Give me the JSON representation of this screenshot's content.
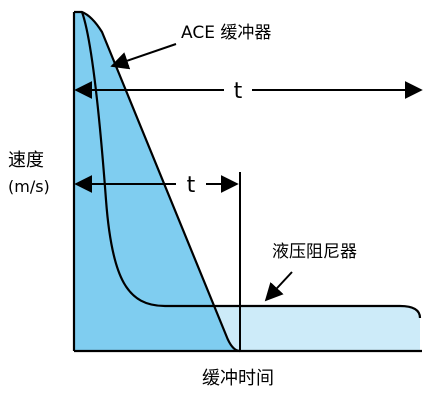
{
  "diagram": {
    "labels": {
      "ace": "ACE 缓冲器",
      "t_long": "t",
      "t_short": "t",
      "ylabel_line1": "速度",
      "ylabel_line2": "(m/s)",
      "hydraulic": "液压阻尼器",
      "xlabel": "缓冲时间"
    },
    "colors": {
      "ace_fill": "#7FCDF0",
      "hydraulic_fill": "#CDEBF9",
      "stroke": "#000000",
      "background": "#ffffff"
    }
  }
}
